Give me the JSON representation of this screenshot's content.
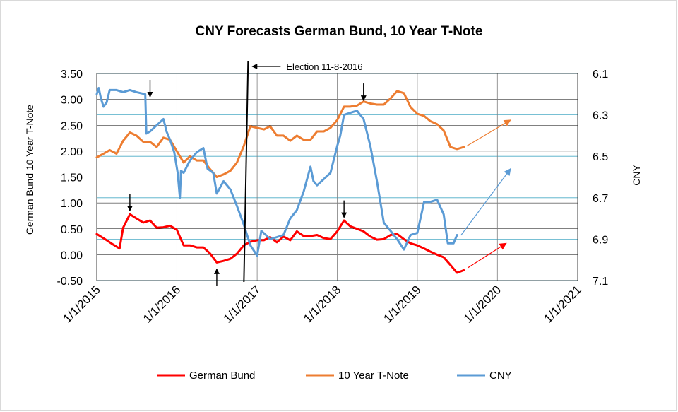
{
  "chart_data": {
    "type": "line",
    "title": "CNY Forecasts German Bund, 10 Year T-Note",
    "ylabel_left": "German Bund     10 Year T-Note",
    "ylabel_right": "CNY",
    "x_range": [
      "2015-01-01",
      "2021-01-01"
    ],
    "x_ticks": [
      "1/1/2015",
      "1/1/2016",
      "1/1/2017",
      "1/1/2018",
      "1/1/2019",
      "1/1/2020",
      "1/1/2021"
    ],
    "ylim_left": [
      -0.5,
      3.5
    ],
    "y_ticks_left": [
      "3.50",
      "3.00",
      "2.50",
      "2.00",
      "1.50",
      "1.00",
      "0.50",
      "0.00",
      "-0.50"
    ],
    "ylim_right": [
      7.1,
      6.1
    ],
    "y_ticks_right": [
      "6.1",
      "6.3",
      "6.5",
      "6.7",
      "6.9",
      "7.1"
    ],
    "right_axis_inverted": true,
    "grid": true,
    "legend_position": "bottom",
    "series": [
      {
        "name": "German Bund",
        "color": "#ff0000",
        "axis": "left",
        "points": [
          [
            "2015-01-01",
            0.4
          ],
          [
            "2015-02-15",
            0.28
          ],
          [
            "2015-03-15",
            0.2
          ],
          [
            "2015-04-15",
            0.12
          ],
          [
            "2015-05-01",
            0.52
          ],
          [
            "2015-06-01",
            0.78
          ],
          [
            "2015-07-01",
            0.7
          ],
          [
            "2015-08-01",
            0.62
          ],
          [
            "2015-09-01",
            0.66
          ],
          [
            "2015-10-01",
            0.52
          ],
          [
            "2015-11-01",
            0.53
          ],
          [
            "2015-12-01",
            0.56
          ],
          [
            "2016-01-01",
            0.48
          ],
          [
            "2016-02-01",
            0.18
          ],
          [
            "2016-03-01",
            0.18
          ],
          [
            "2016-04-01",
            0.14
          ],
          [
            "2016-05-01",
            0.14
          ],
          [
            "2016-06-01",
            0.02
          ],
          [
            "2016-07-01",
            -0.15
          ],
          [
            "2016-08-01",
            -0.12
          ],
          [
            "2016-09-01",
            -0.08
          ],
          [
            "2016-10-01",
            0.02
          ],
          [
            "2016-11-01",
            0.18
          ],
          [
            "2016-12-01",
            0.25
          ],
          [
            "2017-01-01",
            0.28
          ],
          [
            "2017-02-01",
            0.28
          ],
          [
            "2017-03-01",
            0.34
          ],
          [
            "2017-04-01",
            0.24
          ],
          [
            "2017-05-01",
            0.35
          ],
          [
            "2017-06-01",
            0.28
          ],
          [
            "2017-07-01",
            0.45
          ],
          [
            "2017-08-01",
            0.36
          ],
          [
            "2017-09-01",
            0.36
          ],
          [
            "2017-10-01",
            0.38
          ],
          [
            "2017-11-01",
            0.32
          ],
          [
            "2017-12-01",
            0.3
          ],
          [
            "2018-01-01",
            0.45
          ],
          [
            "2018-02-01",
            0.66
          ],
          [
            "2018-03-01",
            0.55
          ],
          [
            "2018-04-01",
            0.5
          ],
          [
            "2018-05-01",
            0.45
          ],
          [
            "2018-06-01",
            0.35
          ],
          [
            "2018-07-01",
            0.29
          ],
          [
            "2018-08-01",
            0.3
          ],
          [
            "2018-09-01",
            0.38
          ],
          [
            "2018-10-01",
            0.4
          ],
          [
            "2018-11-01",
            0.3
          ],
          [
            "2018-12-01",
            0.22
          ],
          [
            "2019-01-01",
            0.18
          ],
          [
            "2019-02-01",
            0.12
          ],
          [
            "2019-03-01",
            0.06
          ],
          [
            "2019-04-01",
            0.0
          ],
          [
            "2019-05-01",
            -0.05
          ],
          [
            "2019-06-01",
            -0.2
          ],
          [
            "2019-07-01",
            -0.35
          ],
          [
            "2019-08-01",
            -0.3
          ]
        ]
      },
      {
        "name": "10 Year T-Note",
        "color": "#ed7d31",
        "axis": "left",
        "points": [
          [
            "2015-01-01",
            1.88
          ],
          [
            "2015-02-01",
            1.95
          ],
          [
            "2015-03-01",
            2.02
          ],
          [
            "2015-04-01",
            1.95
          ],
          [
            "2015-05-01",
            2.2
          ],
          [
            "2015-06-01",
            2.36
          ],
          [
            "2015-07-01",
            2.3
          ],
          [
            "2015-08-01",
            2.18
          ],
          [
            "2015-09-01",
            2.18
          ],
          [
            "2015-10-01",
            2.08
          ],
          [
            "2015-11-01",
            2.26
          ],
          [
            "2015-12-01",
            2.22
          ],
          [
            "2016-01-01",
            2.0
          ],
          [
            "2016-02-01",
            1.78
          ],
          [
            "2016-03-01",
            1.9
          ],
          [
            "2016-04-01",
            1.82
          ],
          [
            "2016-05-01",
            1.82
          ],
          [
            "2016-06-01",
            1.65
          ],
          [
            "2016-07-01",
            1.5
          ],
          [
            "2016-08-01",
            1.55
          ],
          [
            "2016-09-01",
            1.62
          ],
          [
            "2016-10-01",
            1.78
          ],
          [
            "2016-11-01",
            2.1
          ],
          [
            "2016-12-01",
            2.48
          ],
          [
            "2017-01-01",
            2.45
          ],
          [
            "2017-02-01",
            2.42
          ],
          [
            "2017-03-01",
            2.48
          ],
          [
            "2017-04-01",
            2.3
          ],
          [
            "2017-05-01",
            2.3
          ],
          [
            "2017-06-01",
            2.2
          ],
          [
            "2017-07-01",
            2.3
          ],
          [
            "2017-08-01",
            2.22
          ],
          [
            "2017-09-01",
            2.22
          ],
          [
            "2017-10-01",
            2.38
          ],
          [
            "2017-11-01",
            2.38
          ],
          [
            "2017-12-01",
            2.45
          ],
          [
            "2018-01-01",
            2.6
          ],
          [
            "2018-02-01",
            2.86
          ],
          [
            "2018-03-01",
            2.86
          ],
          [
            "2018-04-01",
            2.88
          ],
          [
            "2018-05-01",
            2.96
          ],
          [
            "2018-06-01",
            2.92
          ],
          [
            "2018-07-01",
            2.9
          ],
          [
            "2018-08-01",
            2.9
          ],
          [
            "2018-09-01",
            3.02
          ],
          [
            "2018-10-01",
            3.16
          ],
          [
            "2018-11-01",
            3.12
          ],
          [
            "2018-12-01",
            2.85
          ],
          [
            "2019-01-01",
            2.72
          ],
          [
            "2019-02-01",
            2.68
          ],
          [
            "2019-03-01",
            2.58
          ],
          [
            "2019-04-01",
            2.52
          ],
          [
            "2019-05-01",
            2.4
          ],
          [
            "2019-06-01",
            2.08
          ],
          [
            "2019-07-01",
            2.04
          ],
          [
            "2019-08-01",
            2.08
          ]
        ]
      },
      {
        "name": "CNY",
        "color": "#5b9bd5",
        "axis": "right",
        "points": [
          [
            "2015-01-01",
            6.2
          ],
          [
            "2015-01-10",
            6.17
          ],
          [
            "2015-01-20",
            6.22
          ],
          [
            "2015-02-01",
            6.26
          ],
          [
            "2015-02-15",
            6.24
          ],
          [
            "2015-03-01",
            6.18
          ],
          [
            "2015-04-01",
            6.18
          ],
          [
            "2015-05-01",
            6.19
          ],
          [
            "2015-06-01",
            6.18
          ],
          [
            "2015-07-01",
            6.19
          ],
          [
            "2015-08-10",
            6.2
          ],
          [
            "2015-08-15",
            6.39
          ],
          [
            "2015-09-01",
            6.38
          ],
          [
            "2015-10-01",
            6.35
          ],
          [
            "2015-11-01",
            6.32
          ],
          [
            "2015-11-15",
            6.38
          ],
          [
            "2015-12-01",
            6.42
          ],
          [
            "2015-12-20",
            6.48
          ],
          [
            "2016-01-05",
            6.58
          ],
          [
            "2016-01-15",
            6.7
          ],
          [
            "2016-01-20",
            6.57
          ],
          [
            "2016-02-01",
            6.58
          ],
          [
            "2016-03-01",
            6.52
          ],
          [
            "2016-04-01",
            6.48
          ],
          [
            "2016-05-01",
            6.46
          ],
          [
            "2016-05-20",
            6.56
          ],
          [
            "2016-06-15",
            6.58
          ],
          [
            "2016-07-01",
            6.68
          ],
          [
            "2016-08-01",
            6.62
          ],
          [
            "2016-09-01",
            6.66
          ],
          [
            "2016-10-01",
            6.74
          ],
          [
            "2016-11-01",
            6.83
          ],
          [
            "2016-12-01",
            6.93
          ],
          [
            "2017-01-01",
            6.98
          ],
          [
            "2017-01-20",
            6.86
          ],
          [
            "2017-02-10",
            6.88
          ],
          [
            "2017-03-01",
            6.9
          ],
          [
            "2017-04-01",
            6.89
          ],
          [
            "2017-05-01",
            6.88
          ],
          [
            "2017-06-01",
            6.8
          ],
          [
            "2017-07-01",
            6.76
          ],
          [
            "2017-08-01",
            6.67
          ],
          [
            "2017-09-01",
            6.55
          ],
          [
            "2017-09-15",
            6.62
          ],
          [
            "2017-10-01",
            6.64
          ],
          [
            "2017-11-01",
            6.61
          ],
          [
            "2017-12-01",
            6.58
          ],
          [
            "2018-01-01",
            6.45
          ],
          [
            "2018-01-15",
            6.4
          ],
          [
            "2018-02-01",
            6.3
          ],
          [
            "2018-03-01",
            6.29
          ],
          [
            "2018-04-01",
            6.28
          ],
          [
            "2018-05-01",
            6.32
          ],
          [
            "2018-06-01",
            6.45
          ],
          [
            "2018-07-01",
            6.62
          ],
          [
            "2018-08-01",
            6.82
          ],
          [
            "2018-09-01",
            6.86
          ],
          [
            "2018-10-01",
            6.9
          ],
          [
            "2018-11-01",
            6.95
          ],
          [
            "2018-12-01",
            6.88
          ],
          [
            "2019-01-01",
            6.87
          ],
          [
            "2019-02-01",
            6.72
          ],
          [
            "2019-03-01",
            6.72
          ],
          [
            "2019-04-01",
            6.71
          ],
          [
            "2019-05-01",
            6.78
          ],
          [
            "2019-05-20",
            6.92
          ],
          [
            "2019-06-15",
            6.92
          ],
          [
            "2019-07-01",
            6.88
          ]
        ]
      },
      {
        "name": "",
        "color": "#ed7d31",
        "axis": "left",
        "style": "projection-arrow",
        "points": [
          [
            "2019-08-15",
            2.1
          ],
          [
            "2020-03-01",
            2.6
          ]
        ]
      },
      {
        "name": "",
        "color": "#5b9bd5",
        "axis": "right",
        "style": "projection-arrow",
        "points": [
          [
            "2019-07-20",
            6.88
          ],
          [
            "2020-03-01",
            6.56
          ]
        ]
      },
      {
        "name": "",
        "color": "#ff0000",
        "axis": "left",
        "style": "projection-arrow",
        "points": [
          [
            "2019-08-20",
            -0.25
          ],
          [
            "2020-02-10",
            0.22
          ]
        ]
      }
    ],
    "annotations": [
      {
        "text": "Election 11-8-2016",
        "x": "2016-11-08"
      }
    ],
    "marker_arrows": [
      {
        "x": "2015-09-01",
        "y": 3.05,
        "direction": "down"
      },
      {
        "x": "2015-06-01",
        "y": 0.85,
        "direction": "down"
      },
      {
        "x": "2016-07-01",
        "y": -0.28,
        "direction": "up"
      },
      {
        "x": "2018-02-01",
        "y": 0.72,
        "direction": "down"
      },
      {
        "x": "2018-05-01",
        "y": 2.98,
        "direction": "down"
      }
    ]
  }
}
